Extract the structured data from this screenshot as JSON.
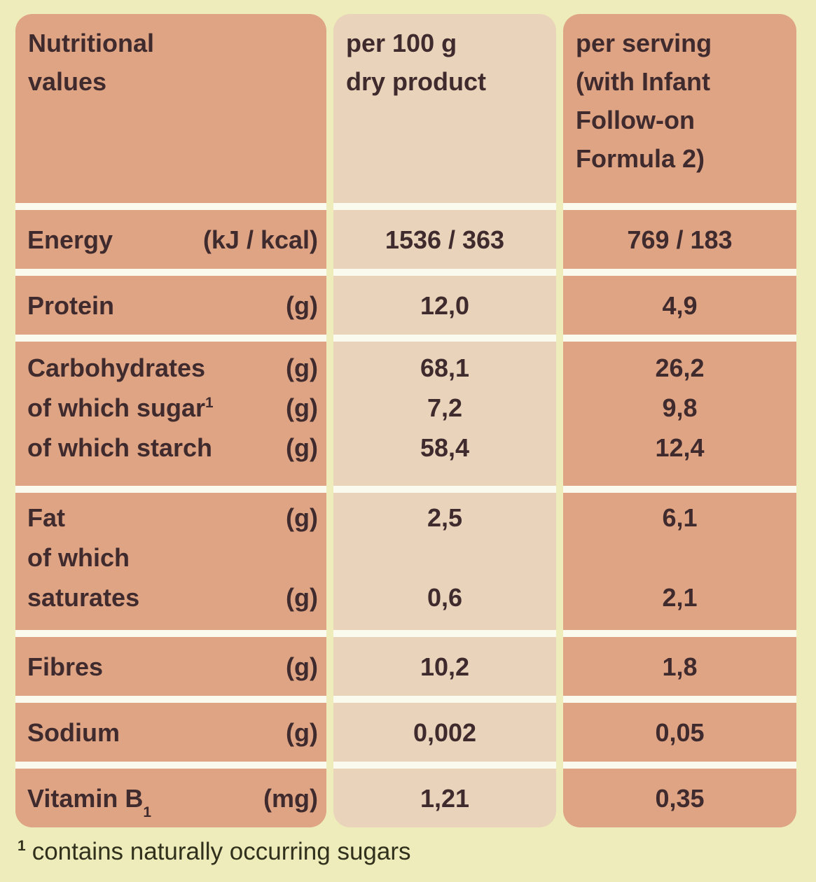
{
  "page_background": "#edecba",
  "colors": {
    "column_dark": "#dfa484",
    "column_light": "#e9d3ba",
    "row_separator": "#fbfaef",
    "table_text": "#3f2a2e",
    "footnote_text": "#31301d"
  },
  "table": {
    "header": {
      "col1_lines": [
        "Nutritional",
        "values"
      ],
      "col2_lines": [
        "per 100 g",
        "dry product"
      ],
      "col3_lines": [
        "per serving",
        "(with Infant",
        "Follow-on",
        "Formula 2)"
      ]
    },
    "rows": [
      {
        "id": "energy",
        "label_lines": [
          {
            "text": "Energy",
            "unit": "(kJ / kcal)"
          }
        ],
        "per_100g_lines": [
          "1536 / 363"
        ],
        "per_serving_lines": [
          "769 / 183"
        ]
      },
      {
        "id": "protein",
        "label_lines": [
          {
            "text": "Protein",
            "unit": "(g)"
          }
        ],
        "per_100g_lines": [
          "12,0"
        ],
        "per_serving_lines": [
          "4,9"
        ]
      },
      {
        "id": "carbohydrates",
        "label_lines": [
          {
            "text": "Carbohydrates",
            "unit": "(g)"
          },
          {
            "text": "of which sugar",
            "sup": "1",
            "unit": "(g)"
          },
          {
            "text": "of which starch",
            "unit": "(g)"
          }
        ],
        "per_100g_lines": [
          "68,1",
          "7,2",
          "58,4"
        ],
        "per_serving_lines": [
          "26,2",
          "9,8",
          "12,4"
        ]
      },
      {
        "id": "fat",
        "label_lines": [
          {
            "text": "Fat",
            "unit": "(g)"
          },
          {
            "text": "of which",
            "unit": ""
          },
          {
            "text": "saturates",
            "unit": "(g)"
          }
        ],
        "per_100g_lines": [
          "2,5",
          "",
          "0,6"
        ],
        "per_serving_lines": [
          "6,1",
          "",
          "2,1"
        ]
      },
      {
        "id": "fibres",
        "label_lines": [
          {
            "text": "Fibres",
            "unit": "(g)"
          }
        ],
        "per_100g_lines": [
          "10,2"
        ],
        "per_serving_lines": [
          "1,8"
        ]
      },
      {
        "id": "sodium",
        "label_lines": [
          {
            "text": "Sodium",
            "unit": "(g)"
          }
        ],
        "per_100g_lines": [
          "0,002"
        ],
        "per_serving_lines": [
          "0,05"
        ]
      },
      {
        "id": "vitamin_b1",
        "label_lines": [
          {
            "text": "Vitamin B",
            "sub": "1",
            "unit": "(mg)"
          }
        ],
        "per_100g_lines": [
          "1,21"
        ],
        "per_serving_lines": [
          "0,35"
        ]
      }
    ],
    "footnote": {
      "sup": "1",
      "text": "contains naturally occurring sugars"
    }
  }
}
